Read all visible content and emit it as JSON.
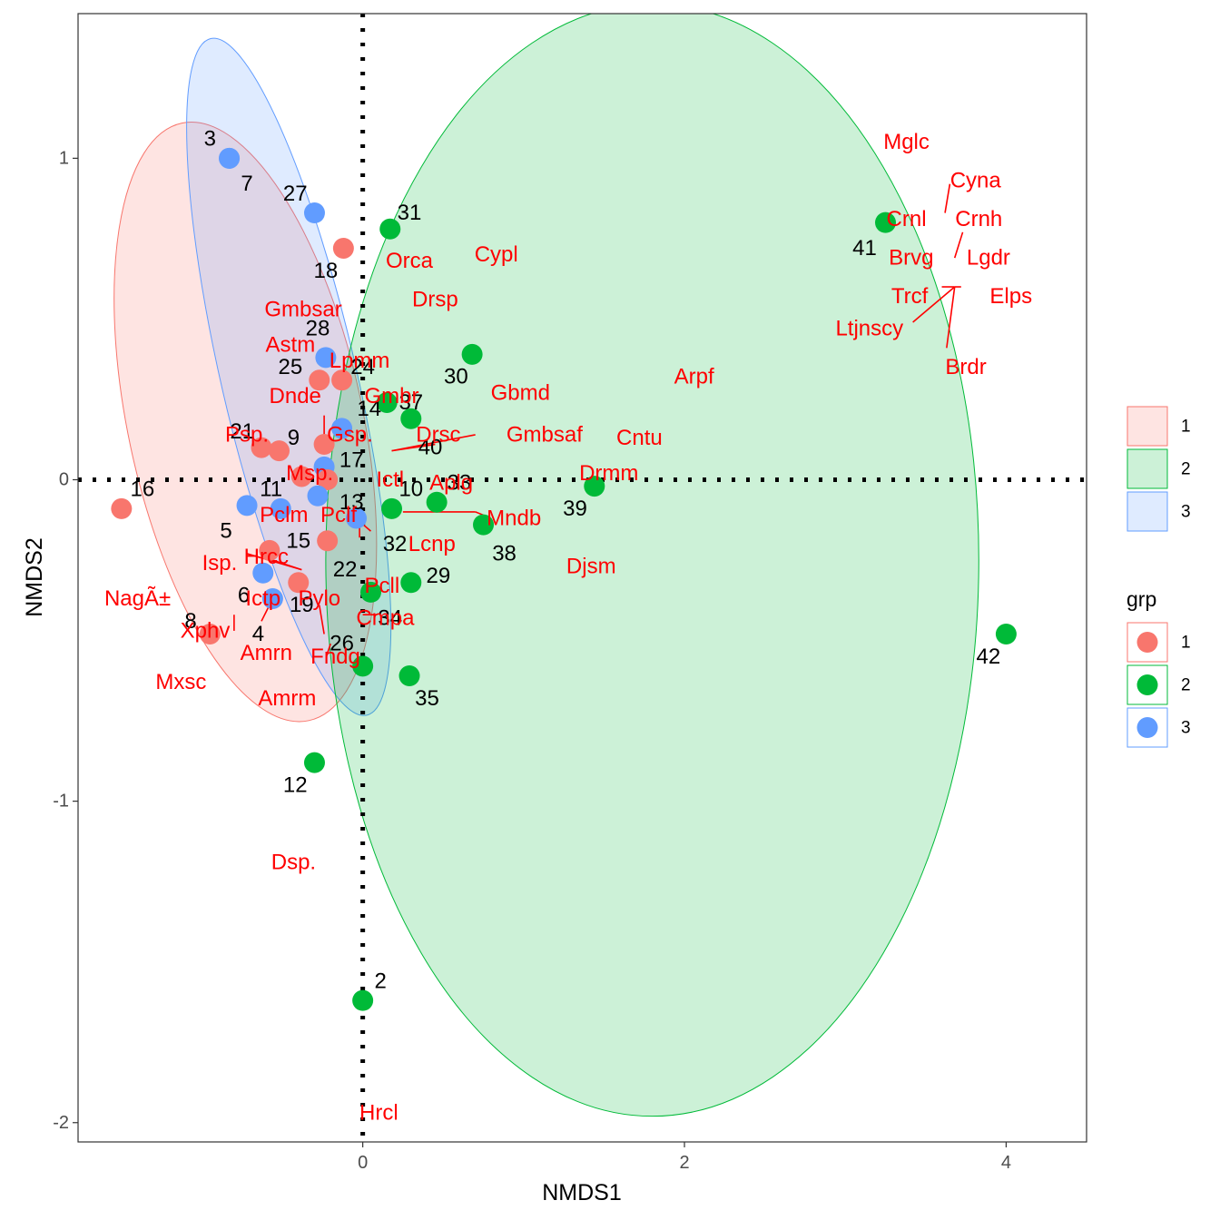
{
  "chart_data": {
    "type": "scatter",
    "title": "",
    "xlabel": "NMDS1",
    "ylabel": "NMDS2",
    "xlim": [
      -1.77,
      4.5
    ],
    "ylim": [
      -2.06,
      1.45
    ],
    "x_ticks": [
      0,
      2,
      4
    ],
    "y_ticks": [
      -2,
      -1,
      0,
      1
    ],
    "grid": false,
    "reference_lines": {
      "x": 0,
      "y": 0,
      "style": "dotted"
    },
    "group_colors": {
      "1": "#F8766D",
      "2": "#00BA38",
      "3": "#619CFF"
    },
    "legend": {
      "position": "right",
      "fill_keys": [
        "1",
        "2",
        "3"
      ],
      "point_title": "grp",
      "point_keys": [
        "1",
        "2",
        "3"
      ]
    },
    "ellipses": [
      {
        "group": "1",
        "cx": -0.73,
        "cy": 0.18,
        "rx": 0.73,
        "ry": 0.95,
        "angle_deg": -12
      },
      {
        "group": "3",
        "cx": -0.46,
        "cy": 0.32,
        "rx": 0.42,
        "ry": 1.08,
        "angle_deg": -13
      },
      {
        "group": "2",
        "cx": 1.8,
        "cy": -0.25,
        "rx": 2.03,
        "ry": 1.73,
        "angle_deg": 0
      }
    ],
    "sites": [
      {
        "id": "3",
        "group": "3",
        "x": -0.83,
        "y": 1.0
      },
      {
        "id": "7",
        "group": "3",
        "x": -0.83,
        "y": 1.0
      },
      {
        "id": "27",
        "group": "3",
        "x": -0.3,
        "y": 0.83
      },
      {
        "id": "18",
        "group": "1",
        "x": -0.12,
        "y": 0.72
      },
      {
        "id": "31",
        "group": "2",
        "x": 0.17,
        "y": 0.78
      },
      {
        "id": "41",
        "group": "2",
        "x": 3.25,
        "y": 0.8
      },
      {
        "id": "28",
        "group": "3",
        "x": -0.23,
        "y": 0.38
      },
      {
        "id": "25",
        "group": "1",
        "x": -0.27,
        "y": 0.31
      },
      {
        "id": "24",
        "group": "1",
        "x": -0.13,
        "y": 0.31
      },
      {
        "id": "30",
        "group": "2",
        "x": 0.68,
        "y": 0.39
      },
      {
        "id": "14",
        "group": "2",
        "x": 0.15,
        "y": 0.24
      },
      {
        "id": "37",
        "group": "2",
        "x": 0.3,
        "y": 0.19
      },
      {
        "id": "1",
        "group": "3",
        "x": -0.13,
        "y": 0.16
      },
      {
        "id": "21",
        "group": "1",
        "x": -0.63,
        "y": 0.1
      },
      {
        "id": "9",
        "group": "1",
        "x": -0.52,
        "y": 0.09
      },
      {
        "id": "40",
        "group": "1",
        "x": -0.24,
        "y": 0.11
      },
      {
        "id": "17",
        "group": "3",
        "x": -0.24,
        "y": 0.04
      },
      {
        "id": "33",
        "group": "1",
        "x": -0.38,
        "y": 0.01
      },
      {
        "id": "10",
        "group": "1",
        "x": -0.22,
        "y": 0.0
      },
      {
        "id": "11",
        "group": "3",
        "x": -0.51,
        "y": -0.09
      },
      {
        "id": "5",
        "group": "3",
        "x": -0.72,
        "y": -0.08
      },
      {
        "id": "13",
        "group": "3",
        "x": -0.28,
        "y": -0.05
      },
      {
        "id": "32",
        "group": "3",
        "x": -0.04,
        "y": -0.12
      },
      {
        "id": "39",
        "group": "2",
        "x": 1.44,
        "y": -0.02
      },
      {
        "id": "34",
        "group": "2",
        "x": 0.46,
        "y": -0.07
      },
      {
        "id": "16",
        "group": "1",
        "x": -1.5,
        "y": -0.09
      },
      {
        "id": "38",
        "group": "2",
        "x": 0.75,
        "y": -0.14
      },
      {
        "id": "15",
        "group": "1",
        "x": -0.22,
        "y": -0.19
      },
      {
        "id": "22",
        "group": "1",
        "x": -0.58,
        "y": -0.22
      },
      {
        "id": "29",
        "group": "2",
        "x": 0.3,
        "y": -0.32
      },
      {
        "id": "6",
        "group": "3",
        "x": -0.62,
        "y": -0.29
      },
      {
        "id": "19",
        "group": "1",
        "x": -0.4,
        "y": -0.32
      },
      {
        "id": "4",
        "group": "3",
        "x": -0.56,
        "y": -0.37
      },
      {
        "id": "26",
        "group": "2",
        "x": 0.05,
        "y": -0.35
      },
      {
        "id": "8",
        "group": "1",
        "x": -0.95,
        "y": -0.48
      },
      {
        "id": "35",
        "group": "2",
        "x": 0.29,
        "y": -0.61
      },
      {
        "id": "36",
        "group": "2",
        "x": 0.0,
        "y": -0.58
      },
      {
        "id": "42",
        "group": "2",
        "x": 4.0,
        "y": -0.48
      },
      {
        "id": "12",
        "group": "2",
        "x": -0.3,
        "y": -0.88
      },
      {
        "id": "2",
        "group": "2",
        "x": 0.0,
        "y": -1.62
      },
      {
        "id": "20",
        "group": "2",
        "x": 0.18,
        "y": -0.09
      }
    ],
    "site_labels": [
      {
        "text": "3",
        "x": -0.95,
        "y": 1.06
      },
      {
        "text": "7",
        "x": -0.72,
        "y": 0.92
      },
      {
        "text": "27",
        "x": -0.42,
        "y": 0.89
      },
      {
        "text": "31",
        "x": 0.29,
        "y": 0.83
      },
      {
        "text": "18",
        "x": -0.23,
        "y": 0.65
      },
      {
        "text": "41",
        "x": 3.12,
        "y": 0.72
      },
      {
        "text": "28",
        "x": -0.28,
        "y": 0.47
      },
      {
        "text": "25",
        "x": -0.45,
        "y": 0.35
      },
      {
        "text": "24",
        "x": 0.0,
        "y": 0.35
      },
      {
        "text": "30",
        "x": 0.58,
        "y": 0.32
      },
      {
        "text": "14",
        "x": 0.04,
        "y": 0.22
      },
      {
        "text": "37",
        "x": 0.3,
        "y": 0.24
      },
      {
        "text": "21",
        "x": -0.75,
        "y": 0.15
      },
      {
        "text": "9",
        "x": -0.43,
        "y": 0.13
      },
      {
        "text": "40",
        "x": 0.42,
        "y": 0.1
      },
      {
        "text": "17",
        "x": -0.07,
        "y": 0.06
      },
      {
        "text": "11",
        "x": -0.57,
        "y": -0.03
      },
      {
        "text": "10",
        "x": 0.3,
        "y": -0.03
      },
      {
        "text": "33",
        "x": 0.6,
        "y": -0.01
      },
      {
        "text": "16",
        "x": -1.37,
        "y": -0.03
      },
      {
        "text": "13",
        "x": -0.07,
        "y": -0.07
      },
      {
        "text": "39",
        "x": 1.32,
        "y": -0.09
      },
      {
        "text": "5",
        "x": -0.85,
        "y": -0.16
      },
      {
        "text": "15",
        "x": -0.4,
        "y": -0.19
      },
      {
        "text": "32",
        "x": 0.2,
        "y": -0.2
      },
      {
        "text": "38",
        "x": 0.88,
        "y": -0.23
      },
      {
        "text": "22",
        "x": -0.11,
        "y": -0.28
      },
      {
        "text": "29",
        "x": 0.47,
        "y": -0.3
      },
      {
        "text": "6",
        "x": -0.74,
        "y": -0.36
      },
      {
        "text": "19",
        "x": -0.38,
        "y": -0.39
      },
      {
        "text": "8",
        "x": -1.07,
        "y": -0.44
      },
      {
        "text": "34",
        "x": 0.17,
        "y": -0.43
      },
      {
        "text": "4",
        "x": -0.65,
        "y": -0.48
      },
      {
        "text": "26",
        "x": -0.13,
        "y": -0.51
      },
      {
        "text": "42",
        "x": 3.89,
        "y": -0.55
      },
      {
        "text": "35",
        "x": 0.4,
        "y": -0.68
      },
      {
        "text": "12",
        "x": -0.42,
        "y": -0.95
      },
      {
        "text": "2",
        "x": 0.11,
        "y": -1.56
      }
    ],
    "species_labels": [
      {
        "text": "Mglc",
        "x": 3.38,
        "y": 1.05
      },
      {
        "text": "Cyna",
        "x": 3.81,
        "y": 0.93
      },
      {
        "text": "Crnl",
        "x": 3.38,
        "y": 0.81
      },
      {
        "text": "Crnh",
        "x": 3.83,
        "y": 0.81
      },
      {
        "text": "Cypl",
        "x": 0.83,
        "y": 0.7
      },
      {
        "text": "Orca",
        "x": 0.29,
        "y": 0.68
      },
      {
        "text": "Brvg",
        "x": 3.41,
        "y": 0.69
      },
      {
        "text": "Lgdr",
        "x": 3.89,
        "y": 0.69
      },
      {
        "text": "Trcf",
        "x": 3.4,
        "y": 0.57
      },
      {
        "text": "Elps",
        "x": 4.03,
        "y": 0.57
      },
      {
        "text": "Drsp",
        "x": 0.45,
        "y": 0.56
      },
      {
        "text": "Gmbsar",
        "x": -0.37,
        "y": 0.53
      },
      {
        "text": "Ltjnscy",
        "x": 3.15,
        "y": 0.47
      },
      {
        "text": "Astm",
        "x": -0.45,
        "y": 0.42
      },
      {
        "text": "Lpmm",
        "x": -0.02,
        "y": 0.37
      },
      {
        "text": "Brdr",
        "x": 3.75,
        "y": 0.35
      },
      {
        "text": "Arpf",
        "x": 2.06,
        "y": 0.32
      },
      {
        "text": "Gbmd",
        "x": 0.98,
        "y": 0.27
      },
      {
        "text": "Dnde",
        "x": -0.42,
        "y": 0.26
      },
      {
        "text": "Gmbr",
        "x": 0.18,
        "y": 0.26
      },
      {
        "text": "Gsp.",
        "x": -0.08,
        "y": 0.14
      },
      {
        "text": "Drsc",
        "x": 0.47,
        "y": 0.14
      },
      {
        "text": "Gmbsaf",
        "x": 1.13,
        "y": 0.14
      },
      {
        "text": "Cntu",
        "x": 1.72,
        "y": 0.13
      },
      {
        "text": "Psp.",
        "x": -0.72,
        "y": 0.14
      },
      {
        "text": "Msp.",
        "x": -0.33,
        "y": 0.02
      },
      {
        "text": "Drmm",
        "x": 1.53,
        "y": 0.02
      },
      {
        "text": "Ictl",
        "x": 0.17,
        "y": 0.0
      },
      {
        "text": "Aplg",
        "x": 0.55,
        "y": -0.01
      },
      {
        "text": "Pclm",
        "x": -0.49,
        "y": -0.11
      },
      {
        "text": "Pclf",
        "x": -0.15,
        "y": -0.11
      },
      {
        "text": "Mndb",
        "x": 0.94,
        "y": -0.12
      },
      {
        "text": "Lcnp",
        "x": 0.43,
        "y": -0.2
      },
      {
        "text": "Isp.",
        "x": -0.89,
        "y": -0.26
      },
      {
        "text": "Hrcc",
        "x": -0.6,
        "y": -0.24
      },
      {
        "text": "Djsm",
        "x": 1.42,
        "y": -0.27
      },
      {
        "text": "Pcll",
        "x": 0.12,
        "y": -0.33
      },
      {
        "text": "NagÃ±",
        "x": -1.4,
        "y": -0.37
      },
      {
        "text": "Ictp",
        "x": -0.62,
        "y": -0.37
      },
      {
        "text": "Pylo",
        "x": -0.27,
        "y": -0.37
      },
      {
        "text": "Cmpa",
        "x": 0.14,
        "y": -0.43
      },
      {
        "text": "Xphv",
        "x": -0.98,
        "y": -0.47
      },
      {
        "text": "Amrn",
        "x": -0.6,
        "y": -0.54
      },
      {
        "text": "Fndg",
        "x": -0.17,
        "y": -0.55
      },
      {
        "text": "Mxsc",
        "x": -1.13,
        "y": -0.63
      },
      {
        "text": "Amrm",
        "x": -0.47,
        "y": -0.68
      },
      {
        "text": "Dsp.",
        "x": -0.43,
        "y": -1.19
      },
      {
        "text": "Hrcl",
        "x": 0.1,
        "y": -1.97
      }
    ],
    "connectors": [
      [
        3.62,
        0.83,
        3.65,
        0.92
      ],
      [
        3.68,
        0.69,
        3.73,
        0.77
      ],
      [
        3.68,
        0.6,
        3.72,
        0.6
      ],
      [
        3.68,
        0.6,
        3.6,
        0.6
      ],
      [
        3.68,
        0.6,
        3.42,
        0.49
      ],
      [
        3.68,
        0.6,
        3.63,
        0.41
      ],
      [
        -0.24,
        0.2,
        -0.24,
        0.14
      ],
      [
        0.18,
        0.09,
        0.7,
        0.14
      ],
      [
        0.18,
        0.09,
        0.45,
        0.11
      ],
      [
        0.25,
        -0.1,
        0.7,
        -0.1
      ],
      [
        0.7,
        -0.1,
        0.75,
        -0.11
      ],
      [
        -0.38,
        -0.28,
        -0.62,
        -0.24
      ],
      [
        -0.38,
        -0.28,
        -0.72,
        -0.23
      ],
      [
        -0.8,
        -0.42,
        -0.8,
        -0.47
      ],
      [
        -0.58,
        -0.39,
        -0.63,
        -0.44
      ],
      [
        -0.24,
        -0.48,
        -0.27,
        -0.39
      ],
      [
        -0.22,
        -0.54,
        -0.2,
        -0.51
      ],
      [
        0.0,
        -0.42,
        0.09,
        -0.42
      ],
      [
        -0.02,
        -0.13,
        0.05,
        -0.16
      ],
      [
        -0.02,
        -0.13,
        -0.02,
        -0.18
      ]
    ]
  }
}
